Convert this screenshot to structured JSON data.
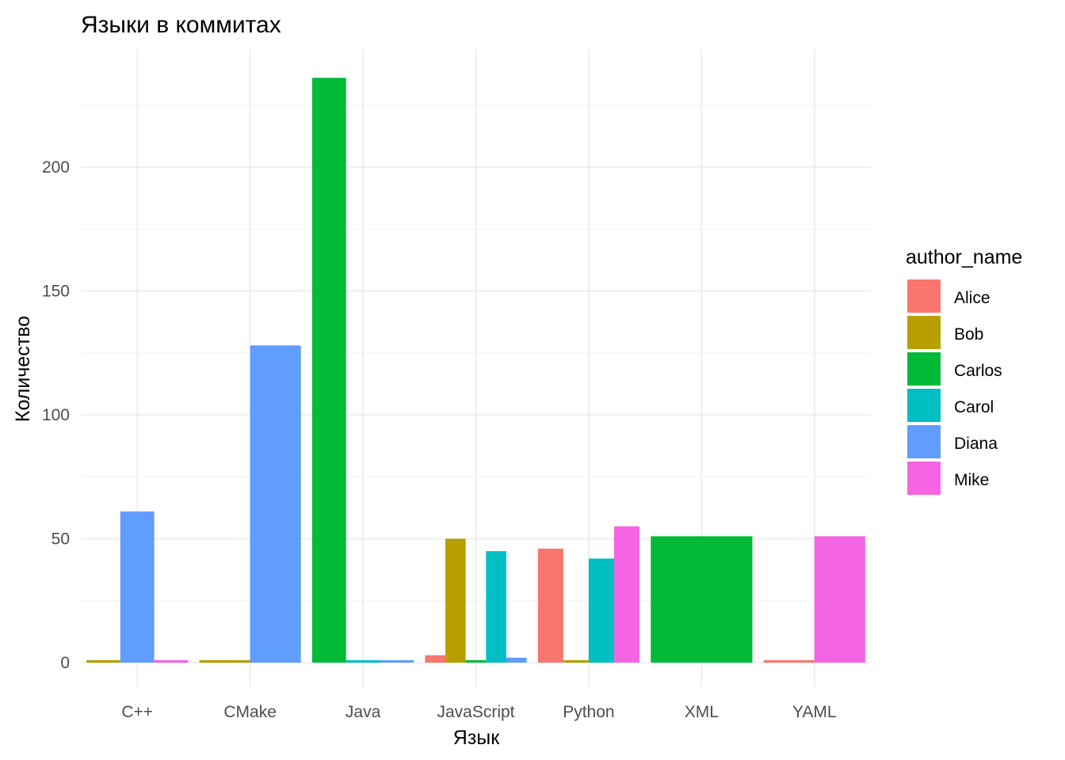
{
  "chart_data": {
    "type": "bar",
    "title": "Языки в коммитах",
    "xlabel": "Язык",
    "ylabel": "Количество",
    "categories": [
      "C++",
      "CMake",
      "Java",
      "JavaScript",
      "Python",
      "XML",
      "YAML"
    ],
    "y_ticks": [
      0,
      50,
      100,
      150,
      200
    ],
    "ylim": [
      -10,
      246
    ],
    "grid": true,
    "legend": {
      "title": "author_name",
      "placement": "right",
      "entries": [
        {
          "name": "Alice",
          "color": "#F8766D"
        },
        {
          "name": "Bob",
          "color": "#B79F00"
        },
        {
          "name": "Carlos",
          "color": "#00BA38"
        },
        {
          "name": "Carol",
          "color": "#00BFC4"
        },
        {
          "name": "Diana",
          "color": "#619CFF"
        },
        {
          "name": "Mike",
          "color": "#F564E3"
        }
      ]
    },
    "groups": [
      {
        "category": "C++",
        "bars": [
          {
            "author": "Bob",
            "value": 1
          },
          {
            "author": "Diana",
            "value": 61
          },
          {
            "author": "Mike",
            "value": 1
          }
        ]
      },
      {
        "category": "CMake",
        "bars": [
          {
            "author": "Bob",
            "value": 1
          },
          {
            "author": "Diana",
            "value": 128
          }
        ]
      },
      {
        "category": "Java",
        "bars": [
          {
            "author": "Carlos",
            "value": 236
          },
          {
            "author": "Carol",
            "value": 1
          },
          {
            "author": "Diana",
            "value": 1
          }
        ]
      },
      {
        "category": "JavaScript",
        "bars": [
          {
            "author": "Alice",
            "value": 3
          },
          {
            "author": "Bob",
            "value": 50
          },
          {
            "author": "Carlos",
            "value": 1
          },
          {
            "author": "Carol",
            "value": 45
          },
          {
            "author": "Diana",
            "value": 2
          }
        ]
      },
      {
        "category": "Python",
        "bars": [
          {
            "author": "Alice",
            "value": 46
          },
          {
            "author": "Bob",
            "value": 1
          },
          {
            "author": "Carol",
            "value": 42
          },
          {
            "author": "Mike",
            "value": 55
          }
        ]
      },
      {
        "category": "XML",
        "bars": [
          {
            "author": "Carlos",
            "value": 51
          }
        ]
      },
      {
        "category": "YAML",
        "bars": [
          {
            "author": "Alice",
            "value": 1
          },
          {
            "author": "Mike",
            "value": 51
          }
        ]
      }
    ]
  }
}
